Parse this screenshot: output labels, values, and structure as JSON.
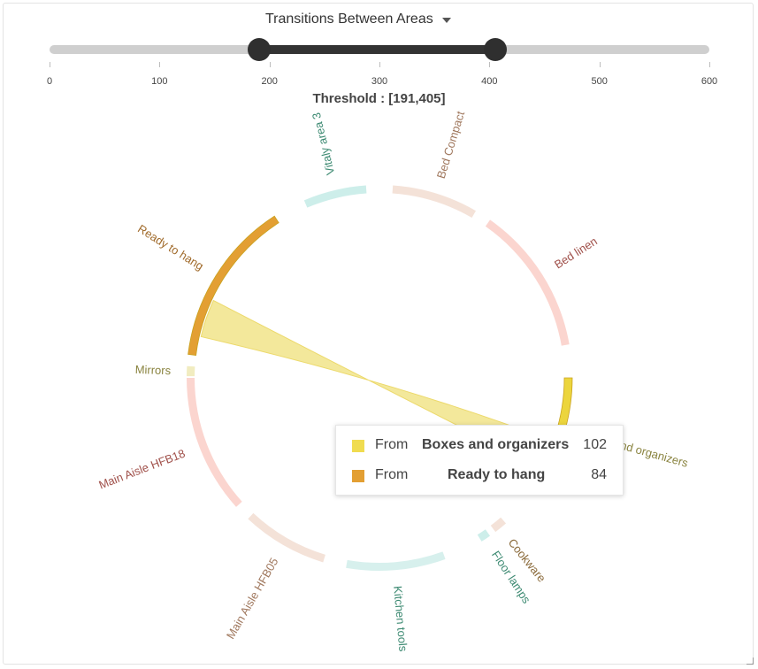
{
  "dropdown": {
    "label": "Transitions Between Areas"
  },
  "slider": {
    "min": 0,
    "max": 600,
    "ticks": [
      "0",
      "100",
      "200",
      "300",
      "400",
      "500",
      "600"
    ],
    "low": 191,
    "high": 405
  },
  "threshold_text": "Threshold : [191,405]",
  "chart_data": {
    "type": "chord",
    "groups": [
      {
        "name": "Vitaly area 3",
        "color": "#cdeeea",
        "text_color": "#3d8a72",
        "highlighted": false
      },
      {
        "name": "Bed Compact",
        "color": "#f4e2d8",
        "text_color": "#a0785e",
        "highlighted": false
      },
      {
        "name": "Bed linen",
        "color": "#fbd5cf",
        "text_color": "#a0504a",
        "highlighted": false
      },
      {
        "name": "Boxes and organizers",
        "color": "#ecd53d",
        "text_color": "#8a8440",
        "highlighted": true
      },
      {
        "name": "Cookware",
        "color": "#f4e2d8",
        "text_color": "#8a6a3a",
        "highlighted": false
      },
      {
        "name": "Floor lamps",
        "color": "#cdeeea",
        "text_color": "#3d8a72",
        "highlighted": false
      },
      {
        "name": "Kitchen tools",
        "color": "#d7f0ed",
        "text_color": "#3d8a72",
        "highlighted": false
      },
      {
        "name": "Main Aisle HFB05",
        "color": "#f4e2d8",
        "text_color": "#a0785e",
        "highlighted": false
      },
      {
        "name": "Main Aisle HFB18",
        "color": "#fbd5cf",
        "text_color": "#a0504a",
        "highlighted": false
      },
      {
        "name": "Mirrors",
        "color": "#f1ecc0",
        "text_color": "#8a8440",
        "highlighted": false
      },
      {
        "name": "Ready to hang",
        "color": "#e39f33",
        "text_color": "#a06a2a",
        "highlighted": true
      }
    ],
    "chords": [
      {
        "source": "Boxes and organizers",
        "target": "Ready to hang",
        "source_value": 102,
        "target_value": 84
      }
    ]
  },
  "tooltip": {
    "rows": [
      {
        "from": "From",
        "name": "Boxes and organizers",
        "value": "102",
        "color": "#f0dc50"
      },
      {
        "from": "From",
        "name": "Ready to hang",
        "value": "84",
        "color": "#e39f33"
      }
    ]
  }
}
